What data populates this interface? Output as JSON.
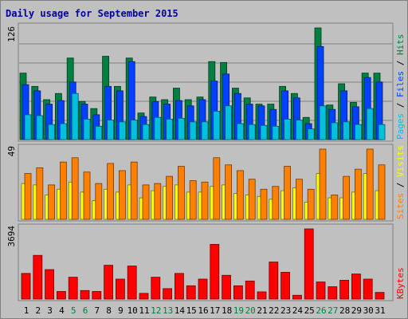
{
  "chart_data": [
    {
      "type": "bar",
      "title": "Daily usage for September 2015",
      "ymax_label": "126",
      "legend": [
        {
          "text": "Pages",
          "color": "#00c0e0"
        },
        {
          "text": "Files",
          "color": "#0040ff"
        },
        {
          "text": "Hits",
          "color": "#008040"
        }
      ],
      "categories": [
        "1",
        "2",
        "3",
        "4",
        "5",
        "6",
        "7",
        "8",
        "9",
        "10",
        "11",
        "12",
        "13",
        "14",
        "15",
        "16",
        "17",
        "18",
        "19",
        "20",
        "21",
        "22",
        "23",
        "24",
        "25",
        "26",
        "27",
        "28",
        "29",
        "30",
        "31"
      ],
      "weekend_days": [
        "5",
        "6",
        "12",
        "13",
        "19",
        "20",
        "26",
        "27"
      ],
      "ylim": [
        0,
        126
      ],
      "series": [
        {
          "name": "Hits",
          "color": "#008040",
          "values": [
            75,
            60,
            45,
            52,
            92,
            43,
            35,
            94,
            60,
            92,
            30,
            48,
            45,
            58,
            45,
            48,
            88,
            87,
            58,
            47,
            40,
            40,
            60,
            52,
            25,
            126,
            39,
            63,
            42,
            75,
            75
          ]
        },
        {
          "name": "Files",
          "color": "#0040ff",
          "values": [
            62,
            55,
            40,
            44,
            65,
            40,
            28,
            60,
            55,
            88,
            26,
            43,
            40,
            44,
            38,
            45,
            66,
            74,
            52,
            40,
            38,
            34,
            55,
            47,
            18,
            105,
            34,
            55,
            37,
            70,
            65
          ]
        },
        {
          "name": "Pages",
          "color": "#00c0e0",
          "values": [
            28,
            27,
            17,
            18,
            52,
            23,
            15,
            22,
            20,
            22,
            17,
            25,
            23,
            24,
            20,
            20,
            32,
            38,
            18,
            17,
            16,
            15,
            23,
            22,
            12,
            38,
            19,
            20,
            17,
            35,
            17
          ]
        }
      ]
    },
    {
      "type": "bar",
      "ymax_label": "49",
      "legend": [
        {
          "text": "Sites",
          "color": "#ff8000"
        },
        {
          "text": "Visits",
          "color": "#ffff00"
        }
      ],
      "categories": [
        "1",
        "2",
        "3",
        "4",
        "5",
        "6",
        "7",
        "8",
        "9",
        "10",
        "11",
        "12",
        "13",
        "14",
        "15",
        "16",
        "17",
        "18",
        "19",
        "20",
        "21",
        "22",
        "23",
        "24",
        "25",
        "26",
        "27",
        "28",
        "29",
        "30",
        "31"
      ],
      "ylim": [
        0,
        49
      ],
      "series": [
        {
          "name": "Visits",
          "color": "#ffff00",
          "values": [
            25,
            24,
            17,
            21,
            26,
            19,
            13,
            21,
            19,
            24,
            15,
            20,
            23,
            24,
            19,
            19,
            23,
            24,
            18,
            17,
            16,
            14,
            20,
            22,
            12,
            32,
            15,
            15,
            19,
            32,
            20
          ]
        },
        {
          "name": "Sites",
          "color": "#ff8000",
          "values": [
            32,
            36,
            24,
            40,
            43,
            33,
            25,
            39,
            34,
            40,
            24,
            25,
            30,
            37,
            27,
            26,
            43,
            38,
            34,
            28,
            21,
            23,
            37,
            28,
            21,
            49,
            17,
            30,
            35,
            49,
            38
          ]
        }
      ]
    },
    {
      "type": "bar",
      "ymax_label": "3694",
      "legend": [
        {
          "text": "KBytes",
          "color": "#ff0000"
        }
      ],
      "categories": [
        "1",
        "2",
        "3",
        "4",
        "5",
        "6",
        "7",
        "8",
        "9",
        "10",
        "11",
        "12",
        "13",
        "14",
        "15",
        "16",
        "17",
        "18",
        "19",
        "20",
        "21",
        "22",
        "23",
        "24",
        "25",
        "26",
        "27",
        "28",
        "29",
        "30",
        "31"
      ],
      "ylim": [
        0,
        3694
      ],
      "series": [
        {
          "name": "KBytes",
          "color": "#ff0000",
          "values": [
            1350,
            2300,
            1550,
            400,
            1150,
            450,
            400,
            1780,
            1050,
            1740,
            300,
            1150,
            550,
            1350,
            700,
            1050,
            2880,
            1250,
            700,
            950,
            380,
            1950,
            1410,
            200,
            3694,
            900,
            650,
            990,
            1320,
            1050,
            350
          ]
        }
      ]
    }
  ]
}
